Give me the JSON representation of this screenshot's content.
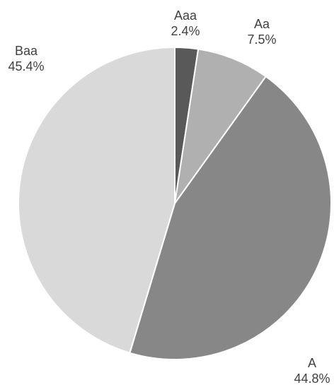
{
  "chart_data": {
    "type": "pie",
    "title": "",
    "start_angle_deg": 0,
    "direction": "clockwise",
    "slices": [
      {
        "label": "Aaa",
        "value": 2.4,
        "value_label": "2.4%",
        "color": "#595959"
      },
      {
        "label": "Aa",
        "value": 7.5,
        "value_label": "7.5%",
        "color": "#b0b0b0"
      },
      {
        "label": "A",
        "value": 44.8,
        "value_label": "44.8%",
        "color": "#878787"
      },
      {
        "label": "Baa",
        "value": 45.4,
        "value_label": "45.4%",
        "color": "#d9d9d9"
      }
    ],
    "legend": "none",
    "data_labels": "outside"
  }
}
